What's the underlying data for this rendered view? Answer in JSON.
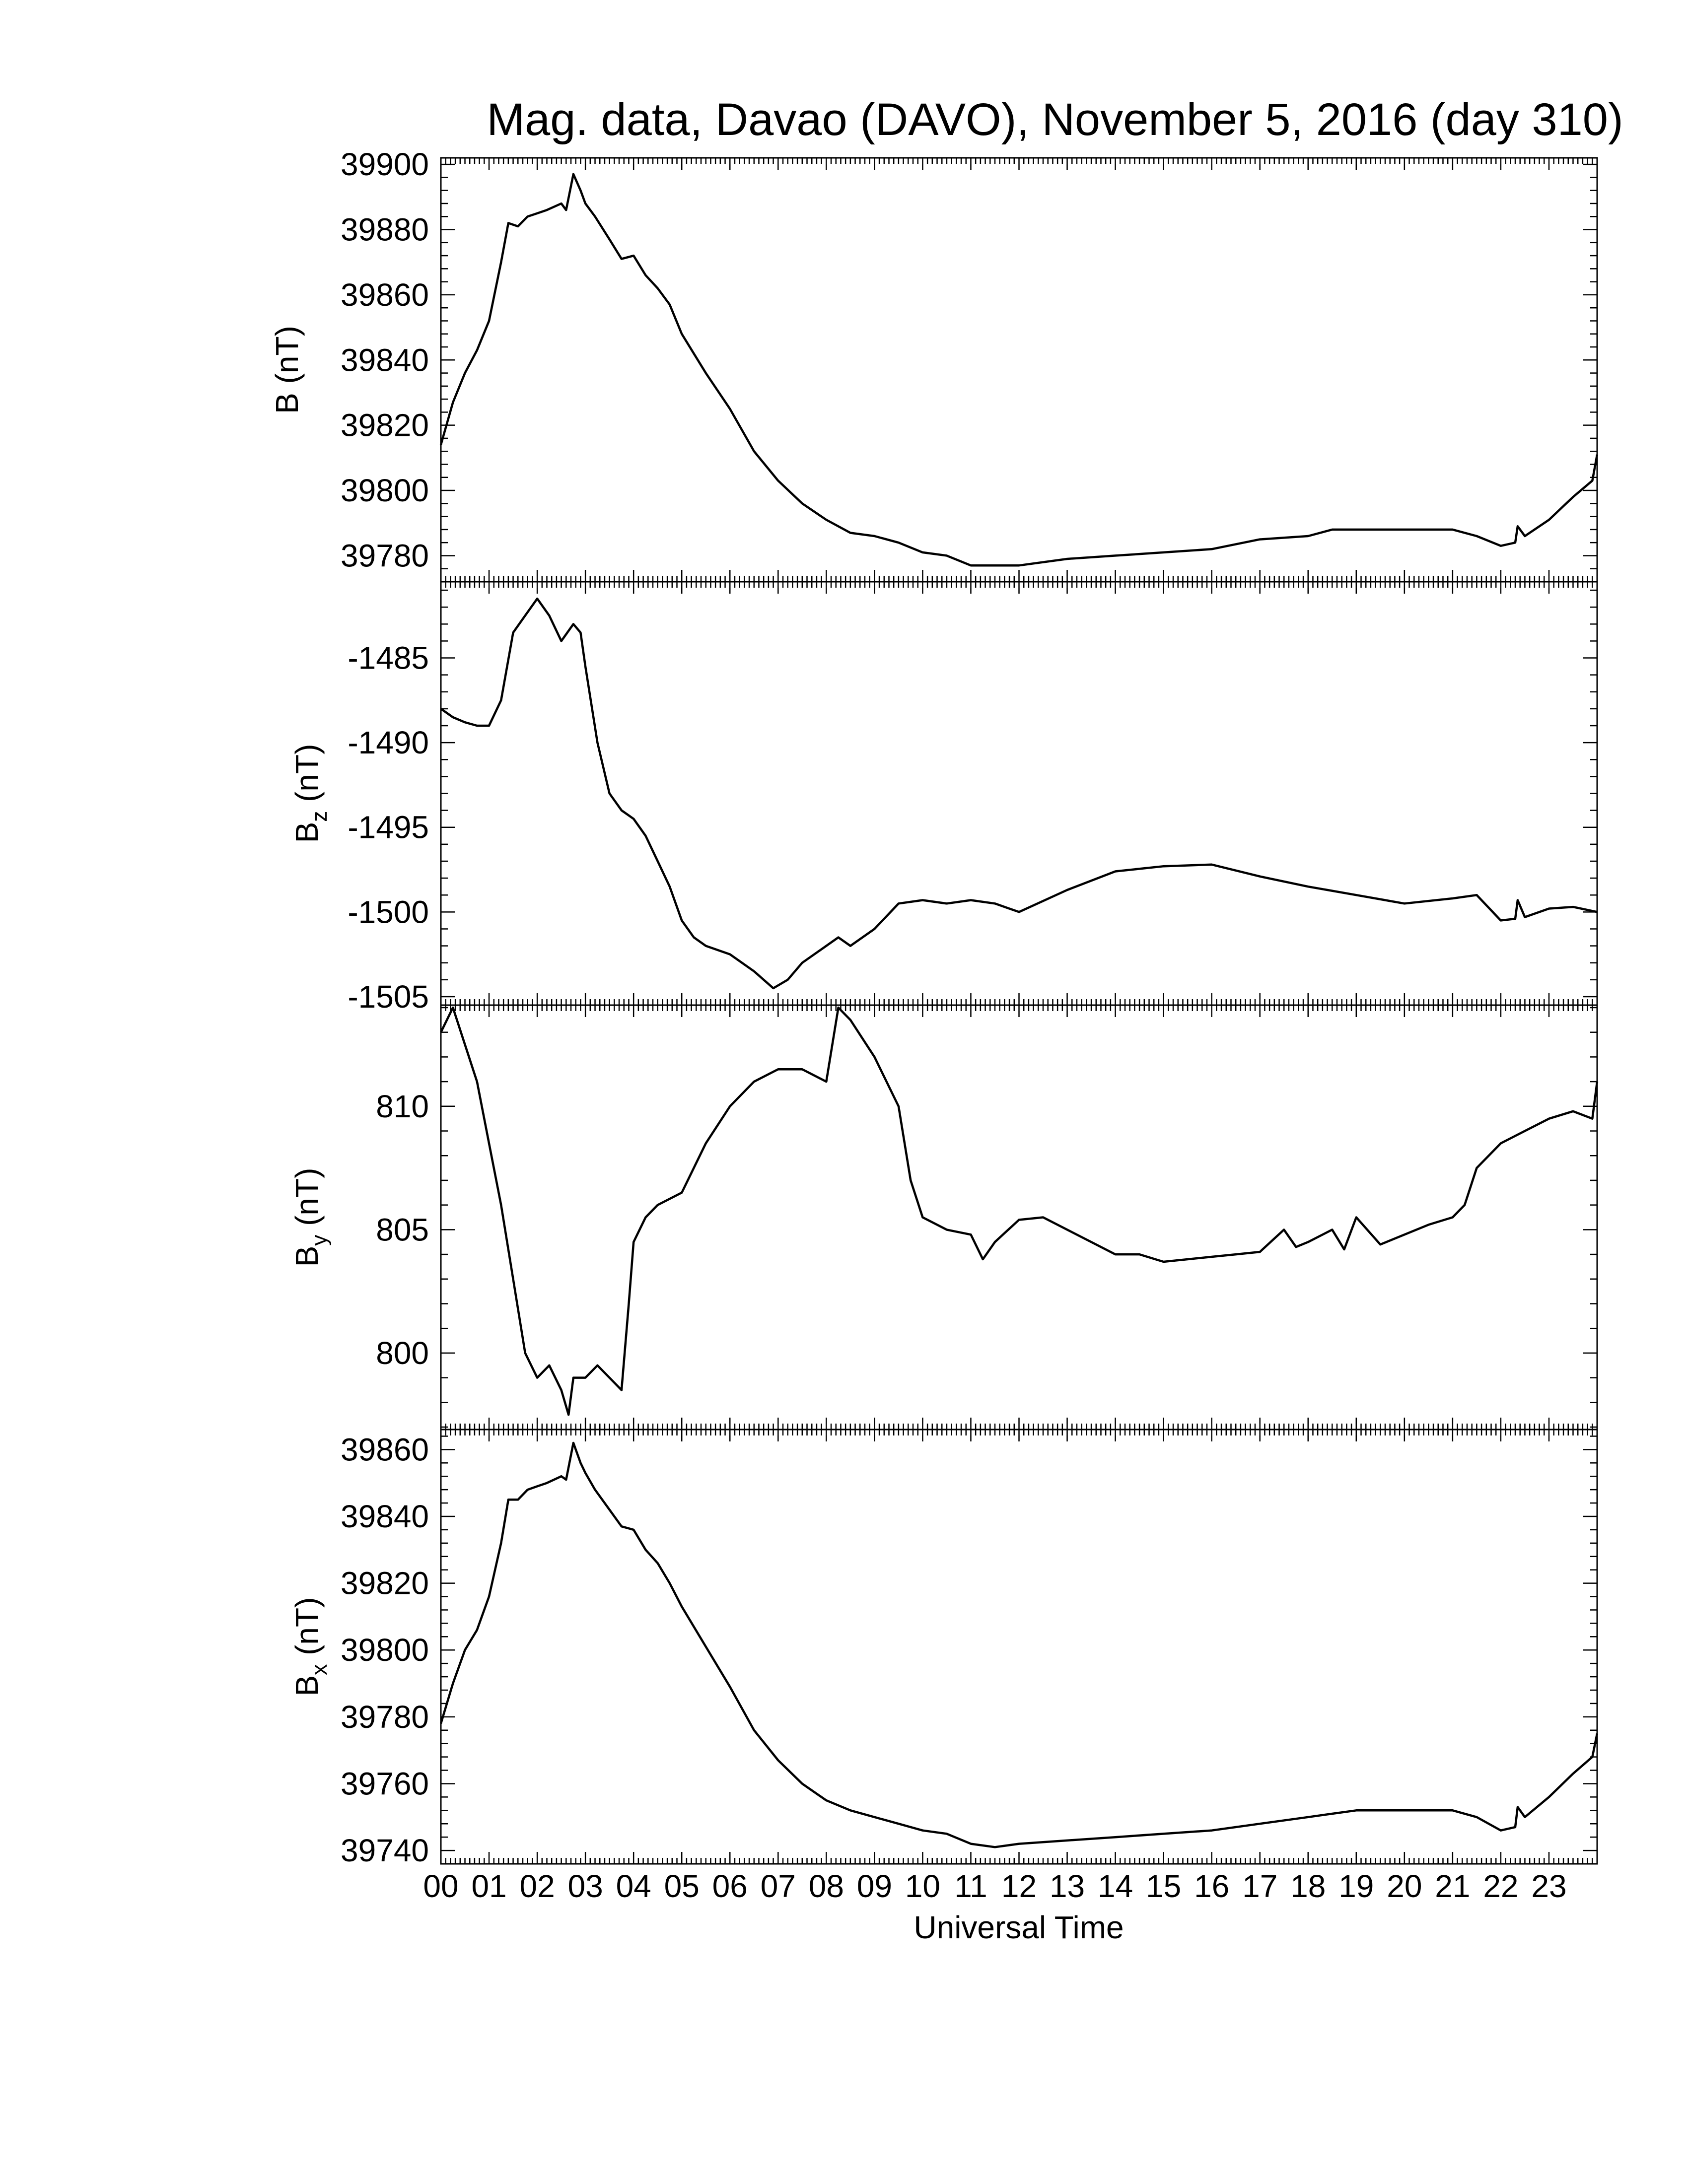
{
  "chart_data": {
    "title": "Mag. data, Davao (DAVO), November 5, 2016 (day 310)",
    "xlabel": "Universal Time",
    "x_unit": "hours UT",
    "xlim": [
      0,
      24
    ],
    "x_ticks": [
      "00",
      "01",
      "02",
      "03",
      "04",
      "05",
      "06",
      "07",
      "08",
      "09",
      "10",
      "11",
      "12",
      "13",
      "14",
      "15",
      "16",
      "17",
      "18",
      "19",
      "20",
      "21",
      "22",
      "23"
    ],
    "line_color": "#000000",
    "grid": false,
    "panels": [
      {
        "type": "line",
        "ylabel_main": "B",
        "ylabel_sub": "",
        "ylabel_unit": "(nT)",
        "ylim": [
          39772,
          39902
        ],
        "y_ticks": [
          39780,
          39800,
          39820,
          39840,
          39860,
          39880,
          39900
        ],
        "y_tick_labels": [
          "39780",
          "39800",
          "39820",
          "39840",
          "39860",
          "39880",
          "39900"
        ],
        "series": [
          {
            "x": [
              0,
              0.25,
              0.5,
              0.75,
              1.0,
              1.25,
              1.4,
              1.6,
              1.8,
              2.0,
              2.2,
              2.5,
              2.6,
              2.75,
              2.9,
              3.0,
              3.2,
              3.5,
              3.75,
              4.0,
              4.25,
              4.5,
              4.75,
              5.0,
              5.5,
              6.0,
              6.5,
              7.0,
              7.5,
              8.0,
              8.5,
              9.0,
              9.5,
              10.0,
              10.5,
              11.0,
              11.5,
              12.0,
              13.0,
              14.0,
              15.0,
              16.0,
              17.0,
              18.0,
              18.5,
              19.0,
              20.0,
              21.0,
              21.5,
              22.0,
              22.3,
              22.35,
              22.5,
              23.0,
              23.5,
              23.9,
              24.0
            ],
            "y": [
              39814,
              39827,
              39836,
              39843,
              39852,
              39870,
              39882,
              39881,
              39884,
              39885,
              39886,
              39888,
              39886,
              39897,
              39892,
              39888,
              39884,
              39877,
              39871,
              39872,
              39866,
              39862,
              39857,
              39848,
              39836,
              39825,
              39812,
              39803,
              39796,
              39791,
              39787,
              39786,
              39784,
              39781,
              39780,
              39777,
              39777,
              39777,
              39779,
              39780,
              39781,
              39782,
              39785,
              39786,
              39788,
              39788,
              39788,
              39788,
              39786,
              39783,
              39784,
              39789,
              39786,
              39791,
              39798,
              39803,
              39811
            ]
          }
        ]
      },
      {
        "type": "line",
        "ylabel_main": "B",
        "ylabel_sub": "z",
        "ylabel_unit": "(nT)",
        "ylim": [
          -1505.5,
          -1480.5
        ],
        "y_ticks": [
          -1505,
          -1500,
          -1495,
          -1490,
          -1485
        ],
        "y_tick_labels": [
          "-1505",
          "-1500",
          "-1495",
          "-1490",
          "-1485"
        ],
        "series": [
          {
            "x": [
              0,
              0.25,
              0.5,
              0.75,
              1.0,
              1.25,
              1.5,
              1.75,
              2.0,
              2.25,
              2.5,
              2.75,
              2.9,
              3.0,
              3.25,
              3.5,
              3.75,
              4.0,
              4.25,
              4.5,
              4.75,
              5.0,
              5.25,
              5.5,
              6.0,
              6.5,
              6.9,
              7.2,
              7.5,
              8.0,
              8.25,
              8.5,
              9.0,
              9.5,
              10.0,
              10.5,
              11.0,
              11.5,
              12.0,
              13.0,
              14.0,
              15.0,
              16.0,
              17.0,
              18.0,
              19.0,
              20.0,
              21.0,
              21.5,
              22.0,
              22.3,
              22.35,
              22.5,
              23.0,
              23.5,
              24.0
            ],
            "y": [
              -1488,
              -1488.5,
              -1488.8,
              -1489,
              -1489,
              -1487.5,
              -1483.5,
              -1482.5,
              -1481.5,
              -1482.5,
              -1484,
              -1483,
              -1483.5,
              -1485.5,
              -1490,
              -1493,
              -1494,
              -1494.5,
              -1495.5,
              -1497,
              -1498.5,
              -1500.5,
              -1501.5,
              -1502,
              -1502.5,
              -1503.5,
              -1504.5,
              -1504,
              -1503,
              -1502,
              -1501.5,
              -1502,
              -1501,
              -1499.5,
              -1499.3,
              -1499.5,
              -1499.3,
              -1499.5,
              -1500,
              -1498.7,
              -1497.6,
              -1497.3,
              -1497.2,
              -1497.9,
              -1498.5,
              -1499,
              -1499.5,
              -1499.2,
              -1499,
              -1500.5,
              -1500.4,
              -1499.3,
              -1500.3,
              -1499.8,
              -1499.7,
              -1500
            ]
          }
        ]
      },
      {
        "type": "line",
        "ylabel_main": "B",
        "ylabel_sub": "y",
        "ylabel_unit": "(nT)",
        "ylim": [
          796.9,
          814.1
        ],
        "y_ticks": [
          800,
          805,
          810
        ],
        "y_tick_labels": [
          "800",
          "805",
          "810"
        ],
        "series": [
          {
            "x": [
              0,
              0.25,
              0.5,
              0.75,
              1.0,
              1.25,
              1.5,
              1.75,
              2.0,
              2.25,
              2.5,
              2.65,
              2.75,
              3.0,
              3.25,
              3.5,
              3.75,
              3.9,
              4.0,
              4.25,
              4.5,
              5.0,
              5.5,
              6.0,
              6.5,
              7.0,
              7.5,
              8.0,
              8.25,
              8.5,
              9.0,
              9.5,
              9.75,
              10.0,
              10.5,
              11.0,
              11.25,
              11.5,
              12.0,
              12.5,
              13.0,
              13.5,
              14.0,
              14.5,
              15.0,
              15.5,
              16.0,
              16.5,
              17.0,
              17.5,
              17.75,
              18.0,
              18.5,
              18.75,
              19.0,
              19.5,
              20.0,
              20.5,
              21.0,
              21.25,
              21.5,
              22.0,
              22.5,
              23.0,
              23.5,
              23.9,
              24.0
            ],
            "y": [
              813,
              814,
              812.5,
              811,
              808.5,
              806,
              803,
              800,
              799,
              799.5,
              798.5,
              797.5,
              799,
              799,
              799.5,
              799,
              798.5,
              802,
              804.5,
              805.5,
              806,
              806.5,
              808.5,
              810,
              811,
              811.5,
              811.5,
              811,
              814,
              813.5,
              812,
              810,
              807,
              805.5,
              805,
              804.8,
              803.8,
              804.5,
              805.4,
              805.5,
              805,
              804.5,
              804,
              804,
              803.7,
              803.8,
              803.9,
              804,
              804.1,
              805,
              804.3,
              804.5,
              805,
              804.2,
              805.5,
              804.4,
              804.8,
              805.2,
              805.5,
              806,
              807.5,
              808.5,
              809,
              809.5,
              809.8,
              809.5,
              811
            ]
          }
        ]
      },
      {
        "type": "line",
        "ylabel_main": "B",
        "ylabel_sub": "x",
        "ylabel_unit": "(nT)",
        "ylim": [
          39736,
          39866
        ],
        "y_ticks": [
          39740,
          39760,
          39780,
          39800,
          39820,
          39840,
          39860
        ],
        "y_tick_labels": [
          "39740",
          "39760",
          "39780",
          "39800",
          "39820",
          "39840",
          "39860"
        ],
        "series": [
          {
            "x": [
              0,
              0.25,
              0.5,
              0.75,
              1.0,
              1.25,
              1.4,
              1.6,
              1.8,
              2.0,
              2.2,
              2.5,
              2.6,
              2.75,
              2.9,
              3.0,
              3.2,
              3.5,
              3.75,
              4.0,
              4.25,
              4.5,
              4.75,
              5.0,
              5.5,
              6.0,
              6.5,
              7.0,
              7.5,
              8.0,
              8.5,
              9.0,
              9.5,
              10.0,
              10.5,
              11.0,
              11.5,
              12.0,
              13.0,
              14.0,
              15.0,
              16.0,
              17.0,
              18.0,
              18.5,
              19.0,
              20.0,
              21.0,
              21.5,
              22.0,
              22.3,
              22.35,
              22.5,
              23.0,
              23.5,
              23.9,
              24.0
            ],
            "y": [
              39778,
              39790,
              39800,
              39806,
              39816,
              39832,
              39845,
              39845,
              39848,
              39849,
              39850,
              39852,
              39851,
              39862,
              39856,
              39853,
              39848,
              39842,
              39837,
              39836,
              39830,
              39826,
              39820,
              39813,
              39801,
              39789,
              39776,
              39767,
              39760,
              39755,
              39752,
              39750,
              39748,
              39746,
              39745,
              39742,
              39741,
              39742,
              39743,
              39744,
              39745,
              39746,
              39748,
              39750,
              39751,
              39752,
              39752,
              39752,
              39750,
              39746,
              39747,
              39753,
              39750,
              39756,
              39763,
              39768,
              39775
            ]
          }
        ]
      }
    ]
  }
}
